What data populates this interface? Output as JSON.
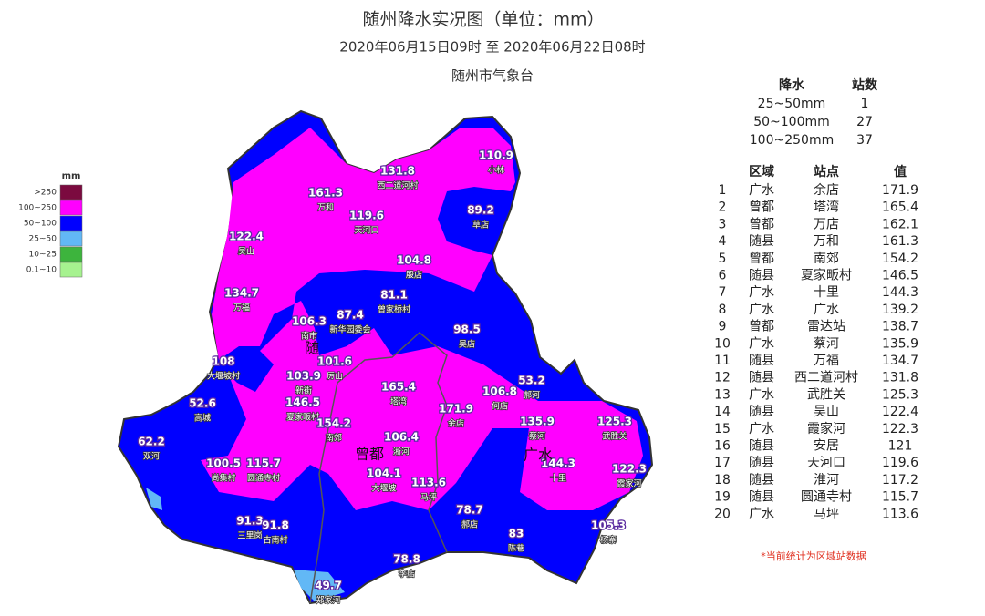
{
  "header": {
    "title": "随州降水实况图（单位：mm）",
    "subtitle": "2020年06月15日09时  至  2020年06月22日08时",
    "org": "随州市气象台"
  },
  "legend": {
    "title": "mm",
    "items": [
      {
        "label": ">250",
        "color": "#7b0a3f"
      },
      {
        "label": "100~250",
        "color": "#ff00ff"
      },
      {
        "label": "50~100",
        "color": "#0000ff"
      },
      {
        "label": "25~50",
        "color": "#62b8f6"
      },
      {
        "label": "10~25",
        "color": "#3db43d"
      },
      {
        "label": "0.1~10",
        "color": "#a6f28f"
      }
    ]
  },
  "summary": {
    "headers": [
      "降水",
      "站数"
    ],
    "rows": [
      [
        "25~50mm",
        1
      ],
      [
        "50~100mm",
        27
      ],
      [
        "100~250mm",
        37
      ]
    ]
  },
  "ranking": {
    "headers": [
      "区域",
      "站点",
      "值"
    ],
    "rows": [
      [
        1,
        "广水",
        "余店",
        171.9
      ],
      [
        2,
        "曾都",
        "塔湾",
        165.4
      ],
      [
        3,
        "曾都",
        "万店",
        162.1
      ],
      [
        4,
        "随县",
        "万和",
        161.3
      ],
      [
        5,
        "曾都",
        "南郊",
        154.2
      ],
      [
        6,
        "随县",
        "夏家畈村",
        146.5
      ],
      [
        7,
        "广水",
        "十里",
        144.3
      ],
      [
        8,
        "广水",
        "广水",
        139.2
      ],
      [
        9,
        "曾都",
        "雷达站",
        138.7
      ],
      [
        10,
        "广水",
        "蔡河",
        135.9
      ],
      [
        11,
        "随县",
        "万福",
        134.7
      ],
      [
        12,
        "随县",
        "西二道河村",
        131.8
      ],
      [
        13,
        "广水",
        "武胜关",
        125.3
      ],
      [
        14,
        "随县",
        "吴山",
        122.4
      ],
      [
        15,
        "广水",
        "霞家河",
        122.3
      ],
      [
        16,
        "随县",
        "安居",
        121
      ],
      [
        17,
        "随县",
        "天河口",
        119.6
      ],
      [
        18,
        "随县",
        "淮河",
        117.2
      ],
      [
        19,
        "随县",
        "圆通寺村",
        115.7
      ],
      [
        20,
        "广水",
        "马坪",
        113.6
      ]
    ],
    "note": "*当前统计为区域站数据"
  },
  "map": {
    "regions": [
      "随",
      "曾都",
      "广水"
    ],
    "stations": [
      {
        "value": 161.3,
        "name": "万和"
      },
      {
        "value": 131.8,
        "name": "西二道河村"
      },
      {
        "value": 110.9,
        "name": "小林"
      },
      {
        "value": 119.6,
        "name": "天河口"
      },
      {
        "value": 89.2,
        "name": "草店"
      },
      {
        "value": 122.4,
        "name": "吴山"
      },
      {
        "value": 104.8,
        "name": "殷店"
      },
      {
        "value": 134.7,
        "name": "万福"
      },
      {
        "value": 81.1,
        "name": "曾家桥村"
      },
      {
        "value": 87.4,
        "name": "新华园委会"
      },
      {
        "value": 106.3,
        "name": "南市"
      },
      {
        "value": 98.5,
        "name": "吴店"
      },
      {
        "value": 108,
        "name": "大堰坡村"
      },
      {
        "value": 101.6,
        "name": "厉山"
      },
      {
        "value": 103.9,
        "name": "新街"
      },
      {
        "value": 146.5,
        "name": "夏家畈村"
      },
      {
        "value": 165.4,
        "name": "塔湾"
      },
      {
        "value": 53.2,
        "name": "郝河"
      },
      {
        "value": 171.9,
        "name": "余店"
      },
      {
        "value": 106.8,
        "name": "何店"
      },
      {
        "value": 52.6,
        "name": "高城"
      },
      {
        "value": 154.2,
        "name": "南郊"
      },
      {
        "value": 135.9,
        "name": "蔡河"
      },
      {
        "value": 125.3,
        "name": "武胜关"
      },
      {
        "value": 62.2,
        "name": "双河"
      },
      {
        "value": 100.5,
        "name": "尚集村"
      },
      {
        "value": 115.7,
        "name": "圆通寺村"
      },
      {
        "value": 106.4,
        "name": "淅河"
      },
      {
        "value": 144.3,
        "name": "十里"
      },
      {
        "value": 122.3,
        "name": "霞家河"
      },
      {
        "value": 104.1,
        "name": "大堰坡"
      },
      {
        "value": 113.6,
        "name": "马坪"
      },
      {
        "value": 91.3,
        "name": "三里岗"
      },
      {
        "value": 91.8,
        "name": "古南村"
      },
      {
        "value": 78.7,
        "name": "郝店"
      },
      {
        "value": 83,
        "name": "陈巷"
      },
      {
        "value": 105.3,
        "name": "杨寨"
      },
      {
        "value": 78.8,
        "name": "李店"
      },
      {
        "value": 49.7,
        "name": "郑家河"
      }
    ]
  }
}
